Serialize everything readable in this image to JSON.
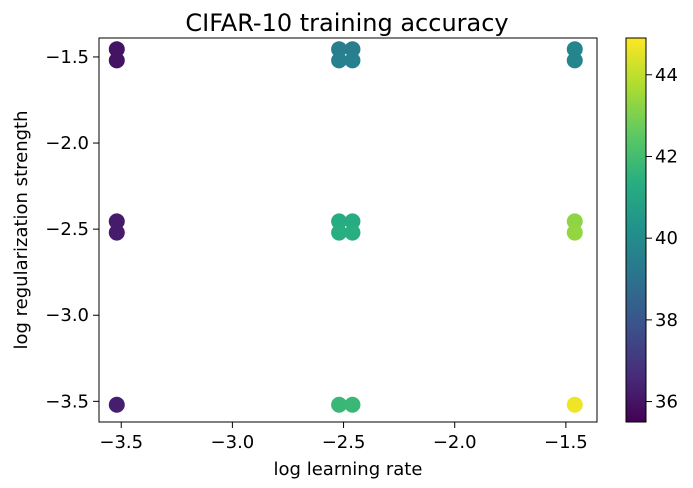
{
  "chart_data": {
    "type": "scatter",
    "title": "CIFAR-10 training accuracy",
    "xlabel": "log learning rate",
    "ylabel": "log regularization strength",
    "xlim": [
      -3.6,
      -1.36
    ],
    "ylim": [
      -3.62,
      -1.39
    ],
    "xticks": [
      -3.5,
      -3.0,
      -2.5,
      -2.0,
      -1.5
    ],
    "xtick_labels": [
      "−3.5",
      "−3.0",
      "−2.5",
      "−2.0",
      "−1.5"
    ],
    "yticks": [
      -1.5,
      -2.0,
      -2.5,
      -3.0,
      -3.5
    ],
    "ytick_labels": [
      "−1.5",
      "−2.0",
      "−2.5",
      "−3.0",
      "−3.5"
    ],
    "grid": false,
    "colormap": "viridis",
    "colorbar": {
      "range": [
        35.5,
        44.9
      ],
      "ticks": [
        36,
        38,
        40,
        42,
        44
      ],
      "tick_labels": [
        "36",
        "38",
        "40",
        "42",
        "44"
      ]
    },
    "points": [
      {
        "x": -3.52,
        "y": -1.455,
        "value": 36.0
      },
      {
        "x": -3.52,
        "y": -1.52,
        "value": 36.0
      },
      {
        "x": -3.52,
        "y": -2.455,
        "value": 36.2
      },
      {
        "x": -3.52,
        "y": -2.52,
        "value": 36.2
      },
      {
        "x": -3.52,
        "y": -3.52,
        "value": 36.3
      },
      {
        "x": -2.52,
        "y": -1.455,
        "value": 39.5
      },
      {
        "x": -2.52,
        "y": -1.52,
        "value": 39.6
      },
      {
        "x": -2.46,
        "y": -1.455,
        "value": 39.5
      },
      {
        "x": -2.46,
        "y": -1.52,
        "value": 39.6
      },
      {
        "x": -2.52,
        "y": -2.455,
        "value": 41.3
      },
      {
        "x": -2.52,
        "y": -2.52,
        "value": 41.4
      },
      {
        "x": -2.46,
        "y": -2.455,
        "value": 41.3
      },
      {
        "x": -2.46,
        "y": -2.52,
        "value": 41.4
      },
      {
        "x": -2.52,
        "y": -3.52,
        "value": 41.8
      },
      {
        "x": -2.46,
        "y": -3.52,
        "value": 41.8
      },
      {
        "x": -1.46,
        "y": -1.455,
        "value": 39.8
      },
      {
        "x": -1.46,
        "y": -1.52,
        "value": 39.8
      },
      {
        "x": -1.46,
        "y": -2.455,
        "value": 43.3
      },
      {
        "x": -1.46,
        "y": -2.52,
        "value": 43.4
      },
      {
        "x": -1.46,
        "y": -3.52,
        "value": 44.7
      }
    ]
  }
}
